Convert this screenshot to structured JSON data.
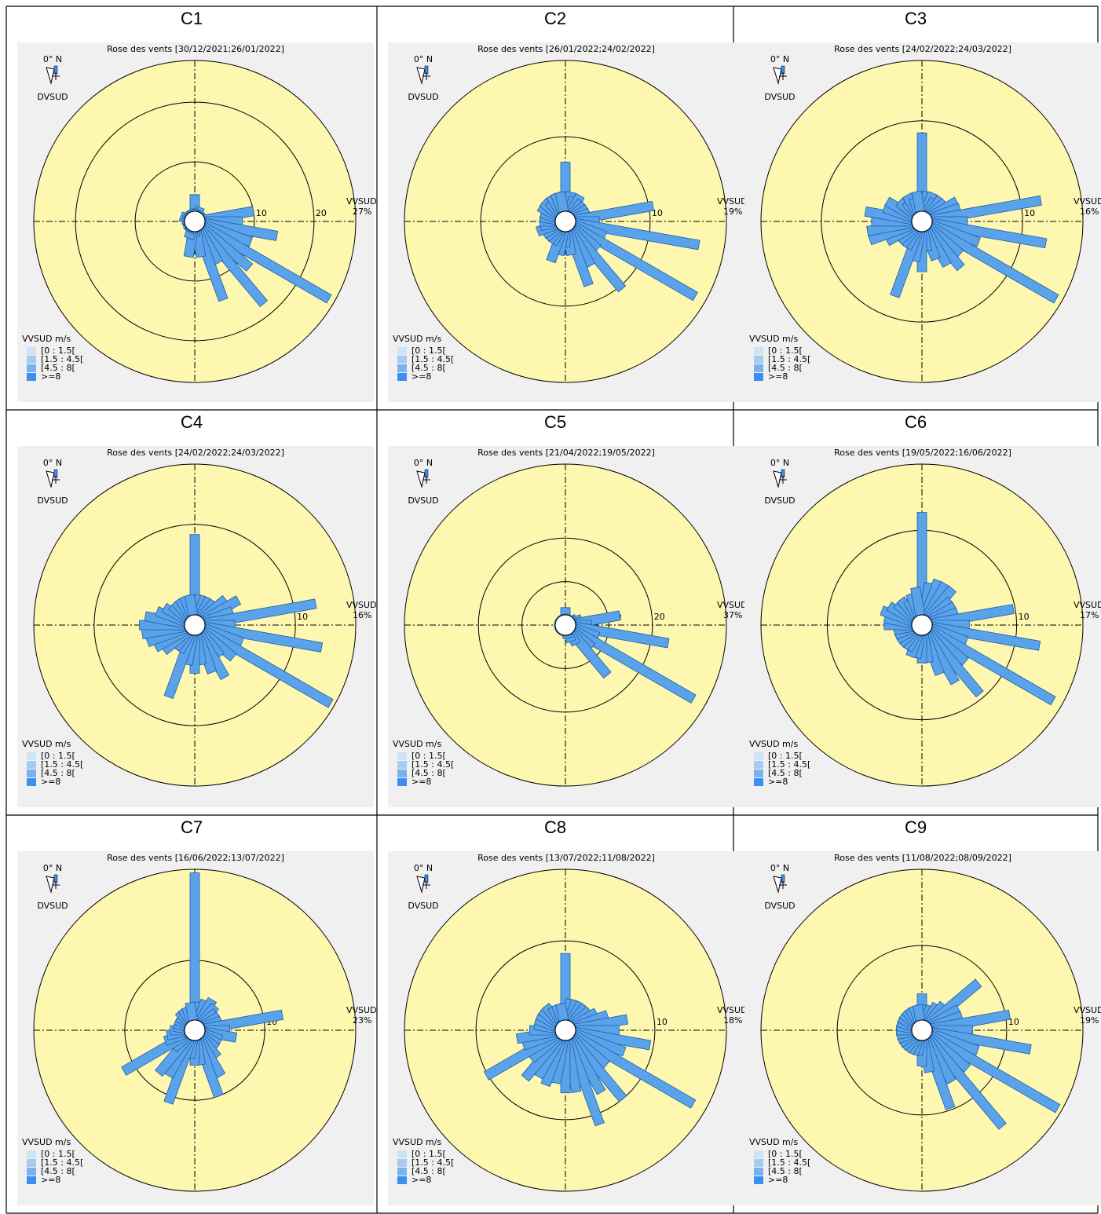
{
  "chart_data": [
    {
      "type": "rose",
      "label": "C1",
      "title": "Rose des vents [30/12/2021;26/01/2022]",
      "north_label": "0° N",
      "direction_label": "DVSUD",
      "radius_label": "VVSUD",
      "legend_title": "VVSUD m/s",
      "speed_classes": [
        {
          "name": "[0 : 1.5[",
          "color": "#cfe3f7"
        },
        {
          "name": "[1.5 : 4.5[",
          "color": "#a6cbf3"
        },
        {
          "name": "[4.5 : 8[",
          "color": "#7ab2ee"
        },
        {
          "name": ">=8",
          "color": "#3a8ff0"
        }
      ],
      "color": "#5aa2ea",
      "rlim": [
        0,
        27
      ],
      "rticks": [
        10,
        20,
        {
          "value": 27,
          "label": "27%"
        }
      ],
      "values": [
        4.5,
        2,
        2.5,
        2,
        1.5,
        1.5,
        1.5,
        2,
        10,
        8,
        14,
        10,
        26,
        12,
        18,
        8,
        14,
        6,
        2.5,
        6,
        3,
        2,
        1.5,
        1.5,
        2,
        2,
        2,
        1.5,
        2,
        2.5,
        2,
        2,
        2,
        2,
        2,
        2
      ]
    },
    {
      "type": "rose",
      "label": "C2",
      "title": "Rose des vents [26/01/2022;24/02/2022]",
      "north_label": "0° N",
      "direction_label": "DVSUD",
      "radius_label": "VVSUD",
      "legend_title": "VVSUD m/s",
      "speed_classes": [
        {
          "name": "[0 : 1.5[",
          "color": "#cfe3f7"
        },
        {
          "name": "[1.5 : 4.5[",
          "color": "#a6cbf3"
        },
        {
          "name": "[4.5 : 8[",
          "color": "#7ab2ee"
        },
        {
          "name": ">=8",
          "color": "#3a8ff0"
        }
      ],
      "color": "#5aa2ea",
      "rlim": [
        0,
        19
      ],
      "rticks": [
        10,
        {
          "value": 19,
          "label": "19%"
        }
      ],
      "values": [
        7,
        3.5,
        3,
        3.5,
        3,
        3,
        3,
        3,
        10.5,
        4,
        16,
        5,
        17.7,
        5,
        10.4,
        6,
        8,
        4,
        3,
        4,
        5,
        3,
        3,
        3,
        3,
        3.5,
        3,
        3,
        3,
        3,
        3.5,
        3.5,
        3,
        3.5,
        3.5,
        3.5
      ]
    },
    {
      "type": "rose",
      "label": "C3",
      "title": "Rose des vents [24/02/2022;24/03/2022]",
      "north_label": "0° N",
      "direction_label": "DVSUD",
      "radius_label": "VVSUD",
      "legend_title": "VVSUD m/s",
      "speed_classes": [
        {
          "name": "[0 : 1.5[",
          "color": "#cfe3f7"
        },
        {
          "name": "[1.5 : 4.5[",
          "color": "#a6cbf3"
        },
        {
          "name": "[4.5 : 8[",
          "color": "#7ab2ee"
        },
        {
          "name": ">=8",
          "color": "#3a8ff0"
        }
      ],
      "color": "#5aa2ea",
      "rlim": [
        0,
        16
      ],
      "rticks": [
        10,
        {
          "value": 16,
          "label": "16%"
        }
      ],
      "values": [
        8.8,
        3,
        3,
        2.5,
        3,
        3,
        4,
        4,
        12,
        4.5,
        12.5,
        6,
        15.4,
        5,
        6,
        5,
        4,
        3,
        5,
        4,
        7.9,
        3,
        3,
        3,
        4,
        5.5,
        5.5,
        5,
        5.7,
        4,
        4,
        3,
        2.5,
        3,
        2.5,
        3
      ]
    },
    {
      "type": "rose",
      "label": "C4",
      "title": "Rose des vents [24/02/2022;24/03/2022]",
      "north_label": "0° N",
      "direction_label": "DVSUD",
      "radius_label": "VVSUD",
      "legend_title": "VVSUD m/s",
      "speed_classes": [
        {
          "name": "[0 : 1.5[",
          "color": "#cfe3f7"
        },
        {
          "name": "[1.5 : 4.5[",
          "color": "#a6cbf3"
        },
        {
          "name": "[4.5 : 8[",
          "color": "#7ab2ee"
        },
        {
          "name": ">=8",
          "color": "#3a8ff0"
        }
      ],
      "color": "#5aa2ea",
      "rlim": [
        0,
        16
      ],
      "rticks": [
        10,
        {
          "value": 16,
          "label": "16%"
        }
      ],
      "values": [
        9,
        3,
        3,
        3,
        3,
        4,
        5,
        4,
        12.2,
        4,
        12.8,
        5,
        15.6,
        5,
        4,
        6,
        5,
        4,
        4.8,
        4,
        7.6,
        3,
        3,
        4,
        4.5,
        5,
        5.3,
        5.5,
        5,
        4,
        3.5,
        3,
        3,
        3,
        3,
        3
      ]
    },
    {
      "type": "rose",
      "label": "C5",
      "title": "Rose des vents [21/04/2022;19/05/2022]",
      "north_label": "0° N",
      "direction_label": "DVSUD",
      "radius_label": "VVSUD",
      "legend_title": "VVSUD m/s",
      "speed_classes": [
        {
          "name": "[0 : 1.5[",
          "color": "#cfe3f7"
        },
        {
          "name": "[1.5 : 4.5[",
          "color": "#a6cbf3"
        },
        {
          "name": "[4.5 : 8[",
          "color": "#7ab2ee"
        },
        {
          "name": ">=8",
          "color": "#3a8ff0"
        }
      ],
      "color": "#5aa2ea",
      "rlim": [
        0,
        37
      ],
      "rticks": [
        10,
        20,
        {
          "value": 37,
          "label": "37%"
        }
      ],
      "values": [
        4,
        2,
        2,
        2,
        2,
        2,
        3,
        4,
        12.7,
        6,
        24,
        8,
        34,
        8,
        15,
        5,
        4,
        3,
        2,
        2,
        2,
        2,
        1.5,
        1.5,
        1.5,
        1.5,
        1.5,
        1.5,
        1.5,
        1.5,
        1.5,
        2,
        2,
        2,
        2,
        2
      ]
    },
    {
      "type": "rose",
      "label": "C6",
      "title": "Rose des vents [19/05/2022;16/06/2022]",
      "north_label": "0° N",
      "direction_label": "DVSUD",
      "radius_label": "VVSUD",
      "legend_title": "VVSUD m/s",
      "speed_classes": [
        {
          "name": "[0 : 1.5[",
          "color": "#cfe3f7"
        },
        {
          "name": "[1.5 : 4.5[",
          "color": "#a6cbf3"
        },
        {
          "name": "[4.5 : 8[",
          "color": "#7ab2ee"
        },
        {
          "name": ">=8",
          "color": "#3a8ff0"
        }
      ],
      "color": "#5aa2ea",
      "rlim": [
        0,
        17
      ],
      "rticks": [
        10,
        {
          "value": 17,
          "label": "17%"
        }
      ],
      "values": [
        11.9,
        4.5,
        5,
        5,
        5,
        4,
        4,
        4,
        9.8,
        5,
        12.6,
        5,
        16,
        6,
        9.5,
        7,
        5.5,
        4,
        4,
        3.5,
        3.5,
        3,
        3,
        3,
        3,
        3,
        3,
        4,
        4,
        4.5,
        4,
        3.5,
        3.5,
        3,
        3.5,
        4
      ]
    },
    {
      "type": "rose",
      "label": "C7",
      "title": "Rose des vents [16/06/2022;13/07/2022]",
      "north_label": "0° N",
      "direction_label": "DVSUD",
      "radius_label": "VVSUD",
      "legend_title": "VVSUD m/s",
      "speed_classes": [
        {
          "name": "[0 : 1.5[",
          "color": "#cfe3f7"
        },
        {
          "name": "[1.5 : 4.5[",
          "color": "#a6cbf3"
        },
        {
          "name": "[4.5 : 8[",
          "color": "#7ab2ee"
        },
        {
          "name": ">=8",
          "color": "#3a8ff0"
        }
      ],
      "color": "#5aa2ea",
      "rlim": [
        0,
        23
      ],
      "rticks": [
        10,
        {
          "value": 23,
          "label": "23%"
        }
      ],
      "values": [
        22.5,
        4,
        4.5,
        5,
        4.5,
        4,
        4,
        4,
        12.7,
        5,
        6,
        4,
        4,
        4,
        5,
        7.5,
        10,
        5,
        5,
        4,
        11,
        7.5,
        8,
        4,
        11.7,
        4.5,
        4,
        3.5,
        3,
        3,
        3,
        3,
        3.5,
        3.5,
        3.5,
        4
      ]
    },
    {
      "type": "rose",
      "label": "C8",
      "title": "Rose des vents [13/07/2022;11/08/2022]",
      "north_label": "0° N",
      "direction_label": "DVSUD",
      "radius_label": "VVSUD",
      "legend_title": "VVSUD m/s",
      "speed_classes": [
        {
          "name": "[0 : 1.5[",
          "color": "#cfe3f7"
        },
        {
          "name": "[1.5 : 4.5[",
          "color": "#a6cbf3"
        },
        {
          "name": "[4.5 : 8[",
          "color": "#7ab2ee"
        },
        {
          "name": ">=8",
          "color": "#3a8ff0"
        }
      ],
      "color": "#5aa2ea",
      "rlim": [
        0,
        18
      ],
      "rticks": [
        10,
        {
          "value": 18,
          "label": "18%"
        }
      ],
      "values": [
        8.6,
        3.5,
        3.5,
        3.5,
        3.5,
        3.5,
        4,
        5,
        7,
        6,
        9.6,
        7,
        16.5,
        6,
        10,
        8,
        11.2,
        7,
        7,
        6,
        6.5,
        6,
        7,
        5,
        10.2,
        5,
        5.5,
        4,
        3.5,
        3.5,
        3.5,
        3.5,
        3.5,
        3,
        3,
        3
      ]
    },
    {
      "type": "rose",
      "label": "C9",
      "title": "Rose des vents [11/08/2022;08/09/2022]",
      "north_label": "0° N",
      "direction_label": "DVSUD",
      "radius_label": "VVSUD",
      "legend_title": "VVSUD m/s",
      "speed_classes": [
        {
          "name": "[0 : 1.5[",
          "color": "#cfe3f7"
        },
        {
          "name": "[1.5 : 4.5[",
          "color": "#a6cbf3"
        },
        {
          "name": "[4.5 : 8[",
          "color": "#7ab2ee"
        },
        {
          "name": ">=8",
          "color": "#3a8ff0"
        }
      ],
      "color": "#5aa2ea",
      "rlim": [
        0,
        19
      ],
      "rticks": [
        10,
        {
          "value": 19,
          "label": "19%"
        }
      ],
      "values": [
        4.3,
        3,
        3,
        3.5,
        4,
        8.7,
        5,
        5,
        10.5,
        6,
        13,
        7,
        18.5,
        7,
        14.8,
        7,
        9.8,
        5,
        4.2,
        3,
        3,
        3,
        3,
        3,
        3,
        3,
        3,
        3,
        3,
        3,
        3,
        3,
        3,
        3,
        3,
        3
      ]
    }
  ]
}
